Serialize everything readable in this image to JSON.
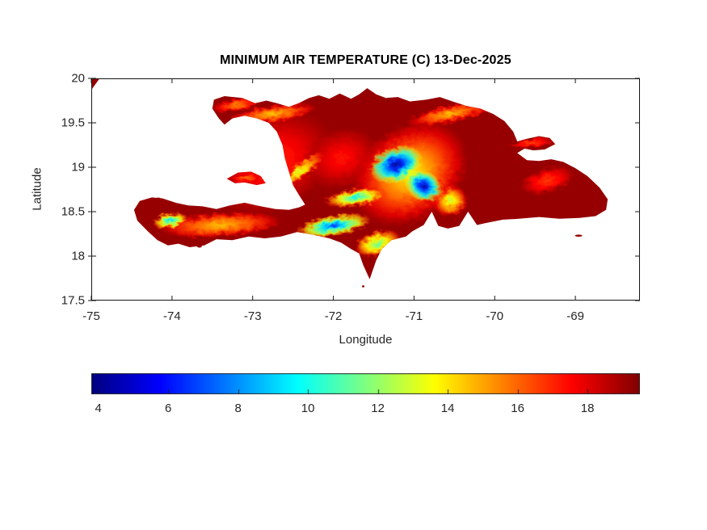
{
  "chart_data": {
    "type": "heatmap",
    "title": "MINIMUM AIR TEMPERATURE (C) 13-Dec-2025",
    "xlabel": "Longitude",
    "ylabel": "Latitude",
    "x_range": [
      -75.0,
      -68.2
    ],
    "y_range": [
      17.5,
      20.0
    ],
    "x_ticks": [
      -75,
      -74,
      -73,
      -72,
      -71,
      -70,
      -69
    ],
    "y_ticks": [
      20,
      19.5,
      19,
      18.5,
      18,
      17.5
    ],
    "grid": false,
    "colorbar": {
      "colormap": "jet",
      "range": [
        3.8,
        19.5
      ],
      "ticks": [
        4,
        6,
        8,
        10,
        12,
        14,
        16,
        18
      ],
      "orientation": "horizontal"
    },
    "sea_color": "#ffffff",
    "land_base_temp_c": 19.15,
    "coastline": {
      "hispaniola": [
        [
          -73.5,
          19.66
        ],
        [
          -73.48,
          19.76
        ],
        [
          -73.35,
          19.8
        ],
        [
          -73.13,
          19.78
        ],
        [
          -72.97,
          19.72
        ],
        [
          -72.83,
          19.75
        ],
        [
          -72.7,
          19.72
        ],
        [
          -72.55,
          19.68
        ],
        [
          -72.43,
          19.72
        ],
        [
          -72.3,
          19.78
        ],
        [
          -72.18,
          19.81
        ],
        [
          -72.05,
          19.77
        ],
        [
          -71.92,
          19.83
        ],
        [
          -71.78,
          19.77
        ],
        [
          -71.68,
          19.82
        ],
        [
          -71.58,
          19.89
        ],
        [
          -71.47,
          19.82
        ],
        [
          -71.35,
          19.78
        ],
        [
          -71.2,
          19.79
        ],
        [
          -71.05,
          19.74
        ],
        [
          -70.85,
          19.76
        ],
        [
          -70.68,
          19.79
        ],
        [
          -70.52,
          19.74
        ],
        [
          -70.35,
          19.69
        ],
        [
          -70.18,
          19.66
        ],
        [
          -70.02,
          19.6
        ],
        [
          -69.88,
          19.52
        ],
        [
          -69.77,
          19.4
        ],
        [
          -69.72,
          19.29
        ],
        [
          -69.6,
          19.32
        ],
        [
          -69.45,
          19.35
        ],
        [
          -69.32,
          19.33
        ],
        [
          -69.25,
          19.26
        ],
        [
          -69.38,
          19.2
        ],
        [
          -69.52,
          19.19
        ],
        [
          -69.63,
          19.21
        ],
        [
          -69.72,
          19.16
        ],
        [
          -69.6,
          19.08
        ],
        [
          -69.45,
          19.07
        ],
        [
          -69.3,
          19.09
        ],
        [
          -69.15,
          19.06
        ],
        [
          -69.0,
          18.99
        ],
        [
          -68.85,
          18.9
        ],
        [
          -68.7,
          18.77
        ],
        [
          -68.6,
          18.64
        ],
        [
          -68.62,
          18.52
        ],
        [
          -68.75,
          18.45
        ],
        [
          -68.95,
          18.43
        ],
        [
          -69.2,
          18.42
        ],
        [
          -69.45,
          18.44
        ],
        [
          -69.7,
          18.42
        ],
        [
          -69.9,
          18.41
        ],
        [
          -70.12,
          18.37
        ],
        [
          -70.22,
          18.35
        ],
        [
          -70.33,
          18.5
        ],
        [
          -70.44,
          18.34
        ],
        [
          -70.58,
          18.31
        ],
        [
          -70.7,
          18.34
        ],
        [
          -70.78,
          18.5
        ],
        [
          -70.88,
          18.35
        ],
        [
          -71.02,
          18.28
        ],
        [
          -71.1,
          18.22
        ],
        [
          -71.28,
          18.18
        ],
        [
          -71.4,
          18.08
        ],
        [
          -71.47,
          17.95
        ],
        [
          -71.55,
          17.74
        ],
        [
          -71.63,
          17.9
        ],
        [
          -71.68,
          18.03
        ],
        [
          -71.78,
          18.08
        ],
        [
          -71.9,
          18.15
        ],
        [
          -72.05,
          18.2
        ],
        [
          -72.25,
          18.24
        ],
        [
          -72.45,
          18.27
        ],
        [
          -72.65,
          18.22
        ],
        [
          -72.85,
          18.2
        ],
        [
          -73.05,
          18.22
        ],
        [
          -73.25,
          18.18
        ],
        [
          -73.45,
          18.19
        ],
        [
          -73.6,
          18.12
        ],
        [
          -73.78,
          18.1
        ],
        [
          -73.92,
          18.14
        ],
        [
          -74.05,
          18.12
        ],
        [
          -74.18,
          18.18
        ],
        [
          -74.3,
          18.28
        ],
        [
          -74.43,
          18.4
        ],
        [
          -74.47,
          18.52
        ],
        [
          -74.4,
          18.62
        ],
        [
          -74.25,
          18.66
        ],
        [
          -74.12,
          18.65
        ],
        [
          -73.95,
          18.6
        ],
        [
          -73.8,
          18.57
        ],
        [
          -73.62,
          18.56
        ],
        [
          -73.45,
          18.53
        ],
        [
          -73.28,
          18.57
        ],
        [
          -73.1,
          18.6
        ],
        [
          -72.9,
          18.56
        ],
        [
          -72.72,
          18.53
        ],
        [
          -72.55,
          18.52
        ],
        [
          -72.42,
          18.55
        ],
        [
          -72.35,
          18.58
        ],
        [
          -72.42,
          18.68
        ],
        [
          -72.5,
          18.8
        ],
        [
          -72.55,
          18.95
        ],
        [
          -72.6,
          19.1
        ],
        [
          -72.63,
          19.25
        ],
        [
          -72.7,
          19.4
        ],
        [
          -72.8,
          19.5
        ],
        [
          -72.95,
          19.55
        ],
        [
          -73.1,
          19.58
        ],
        [
          -73.25,
          19.55
        ],
        [
          -73.35,
          19.48
        ],
        [
          -73.42,
          19.55
        ]
      ],
      "gonave_island": [
        [
          -73.32,
          18.87
        ],
        [
          -73.18,
          18.94
        ],
        [
          -73.02,
          18.95
        ],
        [
          -72.9,
          18.9
        ],
        [
          -72.84,
          18.82
        ],
        [
          -72.95,
          18.8
        ],
        [
          -73.1,
          18.83
        ],
        [
          -73.22,
          18.82
        ]
      ],
      "cuba_corner": [
        [
          -75.0,
          19.995
        ],
        [
          -74.9,
          19.995
        ],
        [
          -75.0,
          19.87
        ]
      ],
      "islets": [
        {
          "name": "cayemites",
          "lon": -74.17,
          "lat": 18.645,
          "rx": 0.03,
          "ry": 0.015
        },
        {
          "name": "ile-a-vache",
          "lon": -73.66,
          "lat": 18.11,
          "rx": 0.03,
          "ry": 0.015
        },
        {
          "name": "saona",
          "lon": -68.96,
          "lat": 18.23,
          "rx": 0.045,
          "ry": 0.012
        },
        {
          "name": "beata",
          "lon": -71.63,
          "lat": 17.66,
          "rx": 0.015,
          "ry": 0.012
        }
      ]
    },
    "temperature_features": [
      {
        "name": "haiti-interior-warm",
        "lon": -72.75,
        "lat": 19.05,
        "rx": 0.85,
        "ry": 0.55,
        "rot": -30,
        "core_temp_c": 16.8,
        "edge_temp_c": 19.0
      },
      {
        "name": "plateau-central-warm",
        "lon": -71.9,
        "lat": 19.1,
        "rx": 0.5,
        "ry": 0.35,
        "rot": -20,
        "core_temp_c": 17.2,
        "edge_temp_c": 19.0
      },
      {
        "name": "tiburon-spine",
        "lon": -73.4,
        "lat": 18.35,
        "rx": 0.75,
        "ry": 0.14,
        "rot": -4,
        "core_temp_c": 14.5,
        "edge_temp_c": 18.0
      },
      {
        "name": "northwest-ridge",
        "lon": -73.2,
        "lat": 19.7,
        "rx": 0.3,
        "ry": 0.08,
        "rot": -10,
        "core_temp_c": 15.5,
        "edge_temp_c": 18.3
      },
      {
        "name": "nord-ridge",
        "lon": -72.75,
        "lat": 19.6,
        "rx": 0.55,
        "ry": 0.1,
        "rot": -8,
        "core_temp_c": 14.5,
        "edge_temp_c": 18.0
      },
      {
        "name": "septentrional-ridge",
        "lon": -70.55,
        "lat": 19.6,
        "rx": 0.55,
        "ry": 0.1,
        "rot": -12,
        "core_temp_c": 14.5,
        "edge_temp_c": 18.2
      },
      {
        "name": "cordillera-central-halo",
        "lon": -71.05,
        "lat": 18.93,
        "rx": 0.8,
        "ry": 0.55,
        "rot": -35,
        "core_temp_c": 13.5,
        "edge_temp_c": 18.8
      },
      {
        "name": "valdesia-hills",
        "lon": -70.55,
        "lat": 18.62,
        "rx": 0.22,
        "ry": 0.18,
        "rot": -20,
        "core_temp_c": 12.5,
        "edge_temp_c": 18.0
      },
      {
        "name": "matheux-ridge",
        "lon": -72.42,
        "lat": 18.95,
        "rx": 0.38,
        "ry": 0.09,
        "rot": -38,
        "core_temp_c": 13.0,
        "edge_temp_c": 17.5
      },
      {
        "name": "neiba-ridge",
        "lon": -71.72,
        "lat": 18.66,
        "rx": 0.4,
        "ry": 0.1,
        "rot": -8,
        "core_temp_c": 9.5,
        "edge_temp_c": 17.5
      },
      {
        "name": "selle-ridge",
        "lon": -72.0,
        "lat": 18.34,
        "rx": 0.48,
        "ry": 0.12,
        "rot": -10,
        "core_temp_c": 6.5,
        "edge_temp_c": 17.0
      },
      {
        "name": "hotte-peak",
        "lon": -74.02,
        "lat": 18.4,
        "rx": 0.22,
        "ry": 0.09,
        "rot": -12,
        "core_temp_c": 9.0,
        "edge_temp_c": 17.0
      },
      {
        "name": "bahoruco",
        "lon": -71.45,
        "lat": 18.14,
        "rx": 0.3,
        "ry": 0.15,
        "rot": -15,
        "core_temp_c": 11.0,
        "edge_temp_c": 17.5
      },
      {
        "name": "oriental-hills",
        "lon": -69.35,
        "lat": 18.85,
        "rx": 0.35,
        "ry": 0.15,
        "rot": -15,
        "core_temp_c": 16.5,
        "edge_temp_c": 18.8
      },
      {
        "name": "samana-ridge",
        "lon": -69.55,
        "lat": 19.27,
        "rx": 0.28,
        "ry": 0.06,
        "rot": -6,
        "core_temp_c": 16.5,
        "edge_temp_c": 18.5
      },
      {
        "name": "gonave-center",
        "lon": -73.08,
        "lat": 18.88,
        "rx": 0.18,
        "ry": 0.06,
        "rot": -10,
        "core_temp_c": 15.5,
        "edge_temp_c": 18.5
      },
      {
        "name": "central-north-core",
        "lon": -71.22,
        "lat": 19.03,
        "rx": 0.34,
        "ry": 0.2,
        "rot": -20,
        "core_temp_c": 4.0,
        "edge_temp_c": 14.0
      },
      {
        "name": "central-south-core",
        "lon": -70.88,
        "lat": 18.79,
        "rx": 0.24,
        "ry": 0.17,
        "rot": 25,
        "core_temp_c": 4.2,
        "edge_temp_c": 14.0
      }
    ],
    "axis_color": "#151515",
    "text_color": "#252525"
  }
}
